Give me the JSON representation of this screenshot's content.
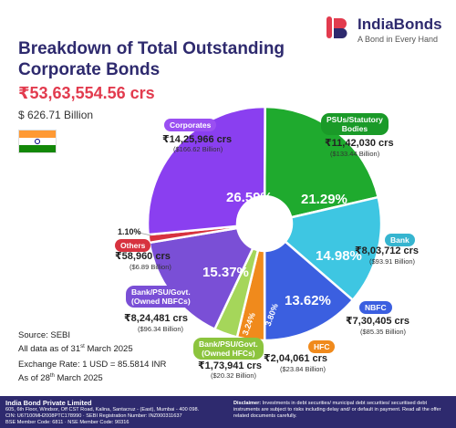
{
  "brand": {
    "name": "IndiaBonds",
    "tagline": "A Bond in Every Hand"
  },
  "header": {
    "title_line1": "Breakdown of Total Outstanding",
    "title_line2": "Corporate Bonds",
    "total_inr": "₹53,63,554.56 crs",
    "total_usd": "$ 626.71 Billion"
  },
  "notes": {
    "source": "Source: SEBI",
    "data_as_of_prefix": "All data as of 31",
    "data_as_of_sup": "st",
    "data_as_of_suffix": " March 2025",
    "exchange_rate": "Exchange Rate: 1 USD = 85.5814 INR",
    "rate_as_of_prefix": "As of 28",
    "rate_as_of_sup": "th",
    "rate_as_of_suffix": " March 2025"
  },
  "footer": {
    "company": "India Bond Private Limited",
    "address": "605, 6th Floor, Windsor, Off CST Road, Kalina, Santacruz - (East), Mumbai - 400 098.",
    "ids": "CIN: U67100MH2008PTC178990 · SEBI Registration Number: INZ000311637",
    "member": "BSE Member Code: 6811 · NSE Member Code: 90316",
    "disclaimer_label": "Disclaimer:",
    "disclaimer_text": " Investments in debt securities/ municipal debt securities/ securitised debt instruments are subject to risks including delay and/ or default in payment. Read all the offer related documents carefully."
  },
  "chart_data": {
    "type": "pie",
    "variant": "donut",
    "total_inr": "₹53,63,554.56 crs",
    "total_usd": "$ 626.71 Billion",
    "slices": [
      {
        "name": "PSUs/Statutory Bodies",
        "name_lines": [
          "PSUs/Statutory",
          "Bodies"
        ],
        "percent": 21.29,
        "percent_label": "21.29%",
        "value_inr": "₹11,42,030 crs",
        "value_usd": "($133.44 Billion)",
        "color": "#1faa2e",
        "label_color": "#1a9a28"
      },
      {
        "name": "Bank",
        "name_lines": [
          "Bank"
        ],
        "percent": 14.98,
        "percent_label": "14.98%",
        "value_inr": "₹8,03,712 crs",
        "value_usd": "($93.91 Billion)",
        "color": "#3ec6e2",
        "label_color": "#36b5d0"
      },
      {
        "name": "NBFC",
        "name_lines": [
          "NBFC"
        ],
        "percent": 13.62,
        "percent_label": "13.62%",
        "value_inr": "₹7,30,405 crs",
        "value_usd": "($85.35 Billion)",
        "color": "#3b5fe0",
        "label_color": "#3b5fe0"
      },
      {
        "name": "HFC",
        "name_lines": [
          "HFC"
        ],
        "percent": 3.8,
        "percent_label": "3.80%",
        "value_inr": "₹2,04,061 crs",
        "value_usd": "($23.84 Billion)",
        "color": "#f08a1c",
        "label_color": "#f08a1c"
      },
      {
        "name": "Bank/PSU/Govt. (Owned HFCs)",
        "name_lines": [
          "Bank/PSU/Govt.",
          "(Owned HFCs)"
        ],
        "percent": 3.24,
        "percent_label": "3.24%",
        "value_inr": "₹1,73,941 crs",
        "value_usd": "($20.32 Billion)",
        "color": "#a5d65a",
        "label_color": "#8cc43e"
      },
      {
        "name": "Bank/PSU/Govt. (Owned NBFCs)",
        "name_lines": [
          "Bank/PSU/Govt.",
          "(Owned NBFCs)"
        ],
        "percent": 15.37,
        "percent_label": "15.37%",
        "value_inr": "₹8,24,481 crs",
        "value_usd": "($96.34 Billion)",
        "color": "#7a4fd6",
        "label_color": "#7a4fd6"
      },
      {
        "name": "Others",
        "name_lines": [
          "Others"
        ],
        "percent": 1.1,
        "percent_label": "1.10%",
        "value_inr": "₹58,960 crs",
        "value_usd": "($6.89 Billion)",
        "color": "#d7323f",
        "label_color": "#d7323f"
      },
      {
        "name": "Corporates",
        "name_lines": [
          "Corporates"
        ],
        "percent": 26.59,
        "percent_label": "26.59%",
        "value_inr": "₹14,25,966 crs",
        "value_usd": "($166.62 Billion)",
        "color": "#8a3ff0",
        "label_color": "#9a4ff2"
      }
    ]
  }
}
